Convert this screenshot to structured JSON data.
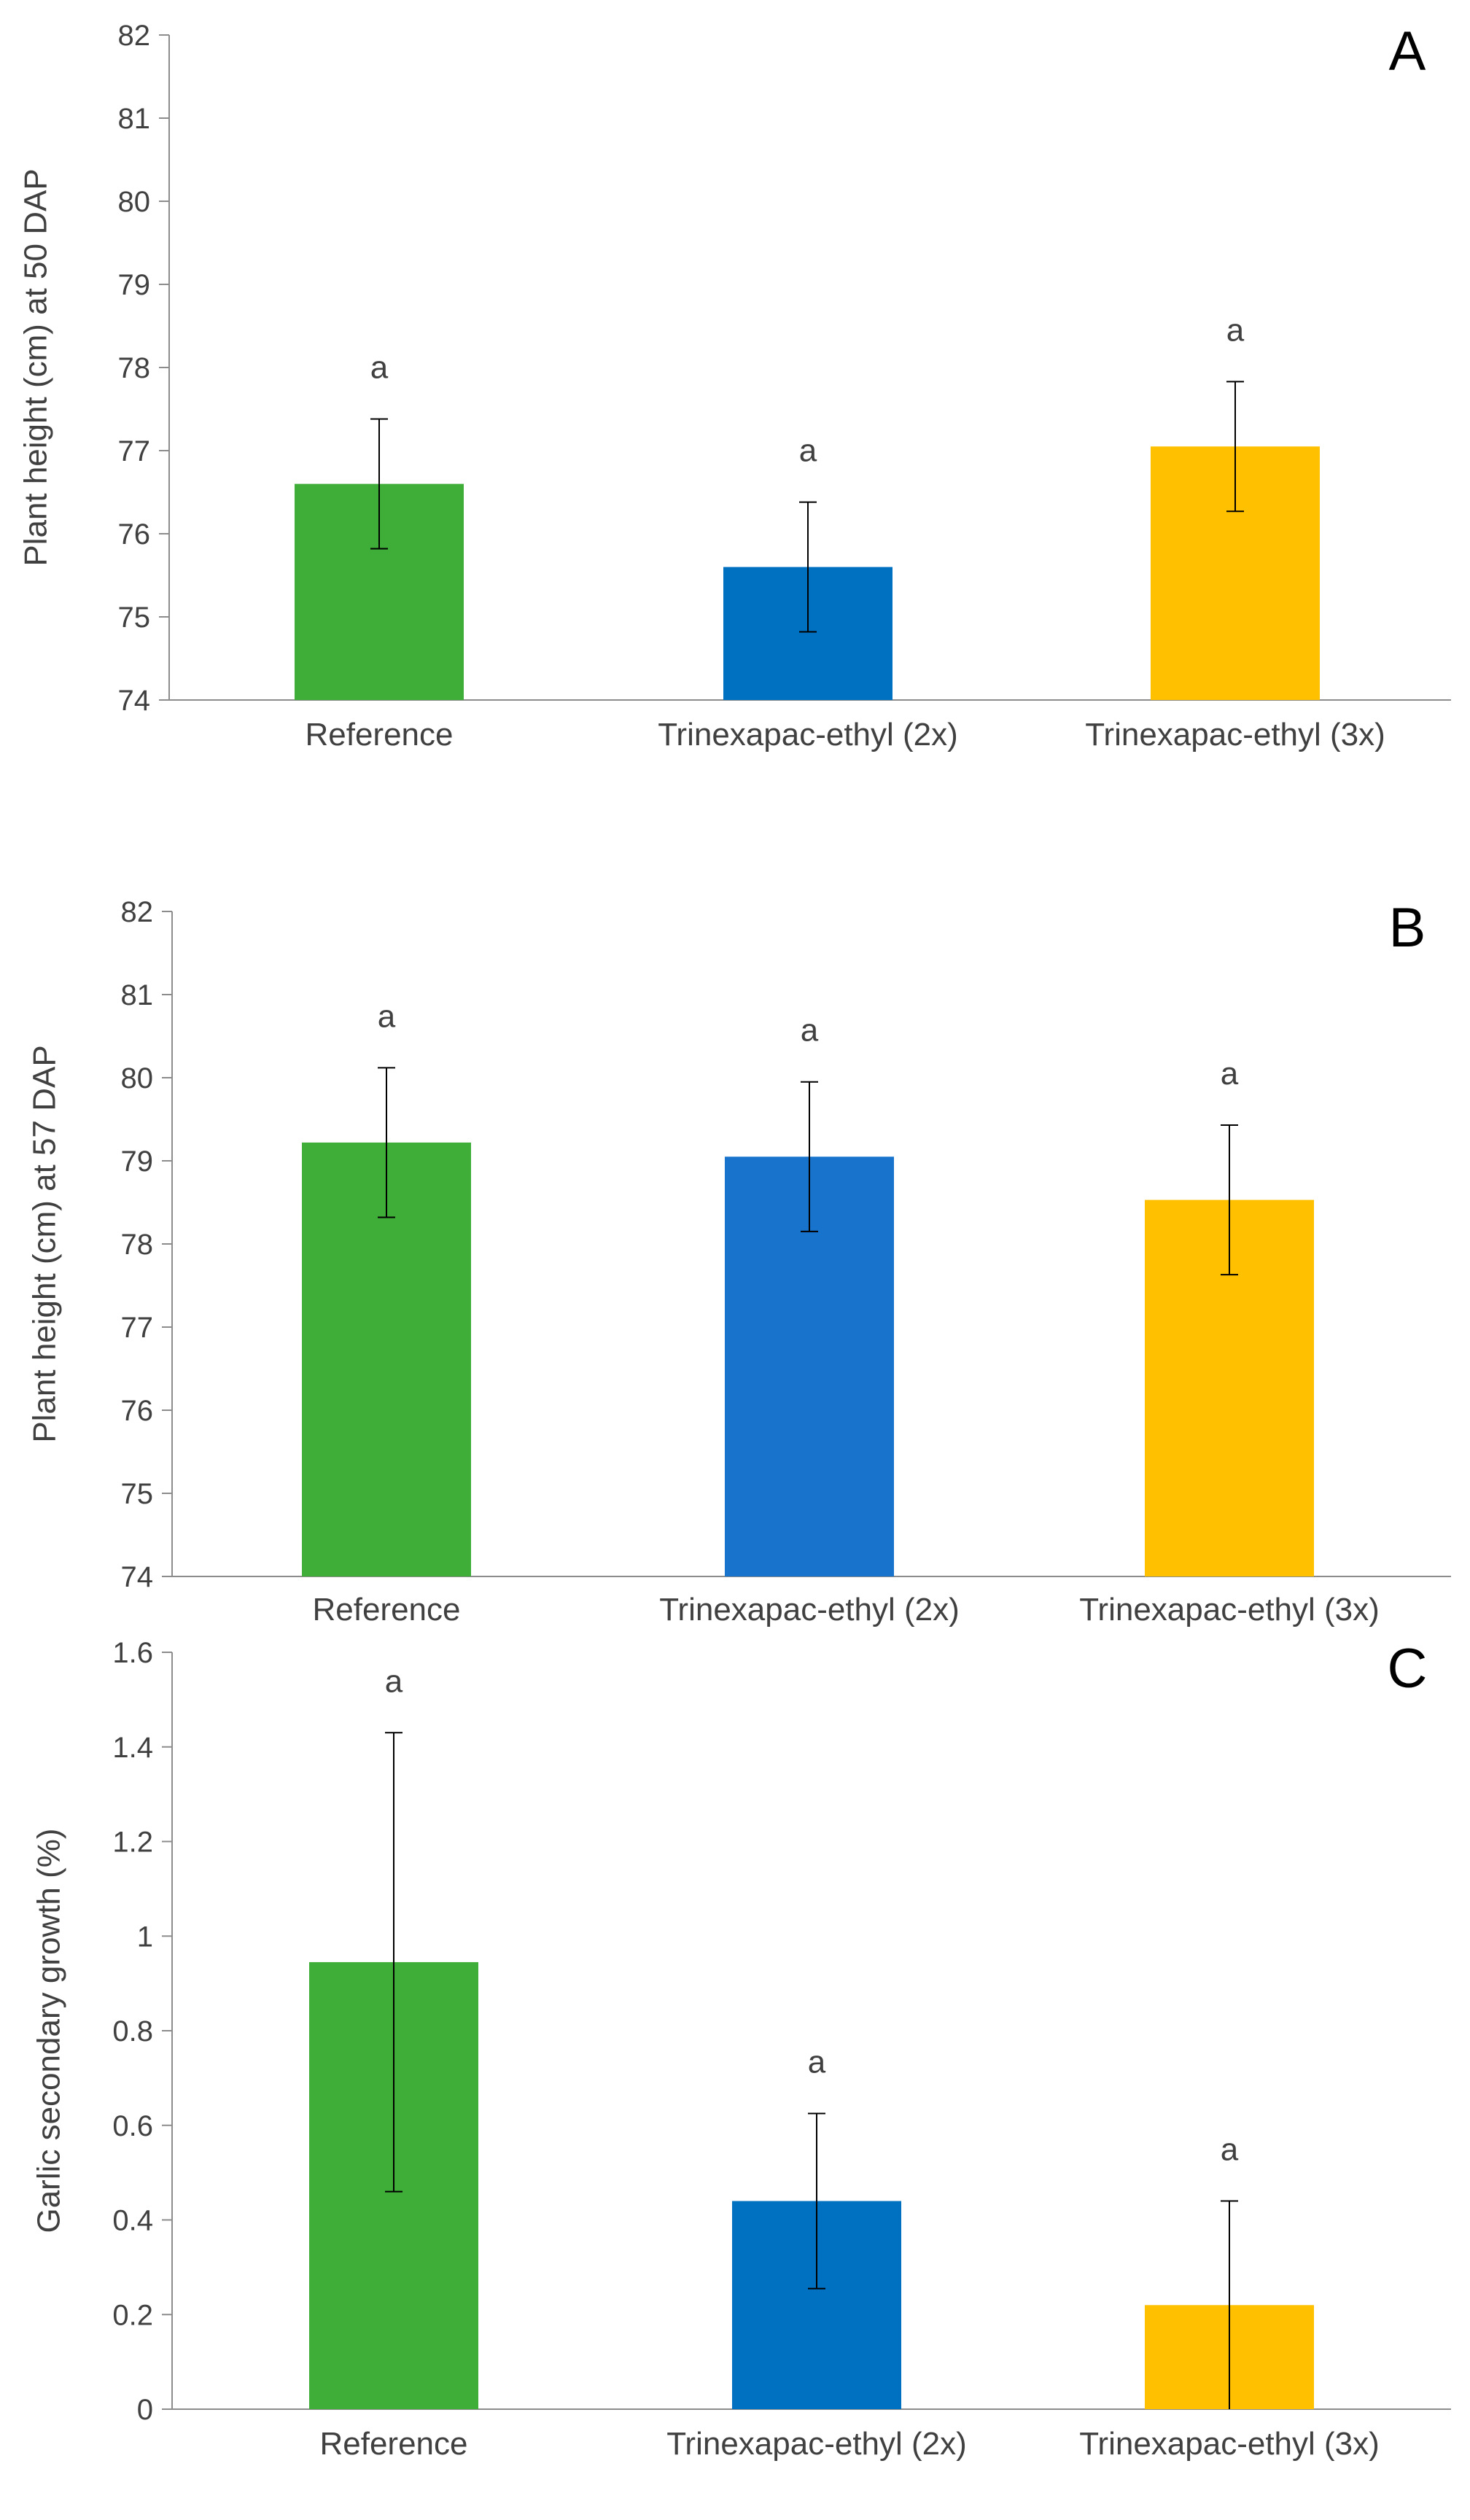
{
  "figure": {
    "panels": [
      "A",
      "B",
      "C"
    ],
    "bar_colors": [
      "#3fae38",
      "#0070c0",
      "#ffc000"
    ],
    "axis_color": "#8c8c8c",
    "text_color": "#404040"
  },
  "chart_data": [
    {
      "type": "bar",
      "panel_label": "A",
      "title": "",
      "xlabel": "",
      "ylabel": "Plant height (cm) at 50 DAP",
      "ylim": [
        74,
        82
      ],
      "yticks": [
        "74",
        "75",
        "76",
        "77",
        "78",
        "79",
        "80",
        "81",
        "82"
      ],
      "categories": [
        "Reference",
        "Trinexapac-ethyl (2x)",
        "Trinexapac-ethyl (3x)"
      ],
      "values": [
        76.6,
        75.6,
        77.05
      ],
      "error": [
        0.78,
        0.78,
        0.78
      ],
      "significance": [
        "a",
        "a",
        "a"
      ],
      "colors": [
        "#3fae38",
        "#0070c0",
        "#ffc000"
      ]
    },
    {
      "type": "bar",
      "panel_label": "B",
      "title": "",
      "xlabel": "",
      "ylabel": "Plant height (cm) at 57 DAP",
      "ylim": [
        74,
        82
      ],
      "yticks": [
        "74",
        "75",
        "76",
        "77",
        "78",
        "79",
        "80",
        "81",
        "82"
      ],
      "categories": [
        "Reference",
        "Trinexapac-ethyl (2x)",
        "Trinexapac-ethyl (3x)"
      ],
      "values": [
        79.22,
        79.05,
        78.53
      ],
      "error": [
        0.9,
        0.9,
        0.9
      ],
      "significance": [
        "a",
        "a",
        "a"
      ],
      "colors": [
        "#3fae38",
        "#1873cc",
        "#ffc000"
      ]
    },
    {
      "type": "bar",
      "panel_label": "C",
      "title": "",
      "xlabel": "",
      "ylabel": "Garlic secondary growth (%)",
      "ylim": [
        0,
        1.6
      ],
      "yticks": [
        "0",
        "0.2",
        "0.4",
        "0.6",
        "0.8",
        "1",
        "1.2",
        "1.4",
        "1.6"
      ],
      "categories": [
        "Reference",
        "Trinexapac-ethyl (2x)",
        "Trinexapac-ethyl (3x)"
      ],
      "values": [
        0.945,
        0.44,
        0.22
      ],
      "error": [
        0.485,
        0.185,
        0.22
      ],
      "significance": [
        "a",
        "a",
        "a"
      ],
      "colors": [
        "#3fae38",
        "#0070c0",
        "#ffc000"
      ]
    }
  ]
}
